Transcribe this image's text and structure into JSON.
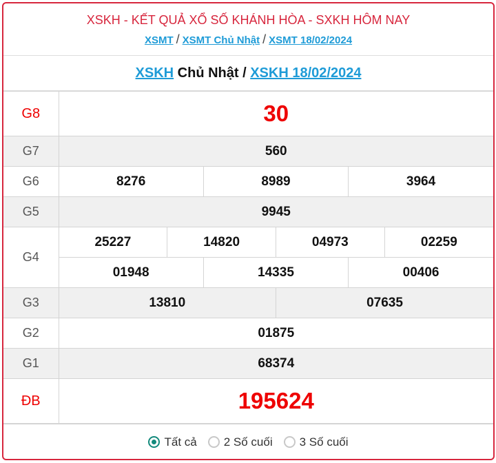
{
  "header": {
    "title": "XSKH - KẾT QUẢ XỔ SỐ KHÁNH HÒA - SXKH HÔM NAY",
    "breadcrumb": [
      "XSMT",
      "XSMT Chủ Nhật",
      "XSMT 18/02/2024"
    ],
    "separator": "/"
  },
  "subheader": {
    "link1": "XSKH",
    "text": " Chủ Nhật / ",
    "link2": "XSKH 18/02/2024"
  },
  "prizes": {
    "g8": {
      "label": "G8",
      "values": [
        "30"
      ]
    },
    "g7": {
      "label": "G7",
      "values": [
        "560"
      ]
    },
    "g6": {
      "label": "G6",
      "values": [
        "8276",
        "8989",
        "3964"
      ]
    },
    "g5": {
      "label": "G5",
      "values": [
        "9945"
      ]
    },
    "g4": {
      "label": "G4",
      "values": [
        "25227",
        "14820",
        "04973",
        "02259",
        "01948",
        "14335",
        "00406"
      ]
    },
    "g3": {
      "label": "G3",
      "values": [
        "13810",
        "07635"
      ]
    },
    "g2": {
      "label": "G2",
      "values": [
        "01875"
      ]
    },
    "g1": {
      "label": "G1",
      "values": [
        "68374"
      ]
    },
    "db": {
      "label": "ĐB",
      "values": [
        "195624"
      ]
    }
  },
  "filter": {
    "options": [
      "Tất cả",
      "2 Số cuối",
      "3 Số cuối"
    ],
    "selected": "Tất cả"
  },
  "colors": {
    "accent": "#d7263d",
    "link": "#1e9bd7",
    "prize_red": "#ee0000",
    "radio": "#138a7c"
  }
}
